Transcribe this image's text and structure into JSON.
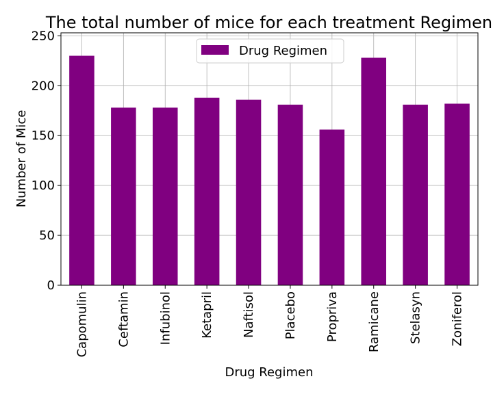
{
  "chart_data": {
    "type": "bar",
    "title": "The total number of mice for each treatment Regimen",
    "xlabel": "Drug Regimen",
    "ylabel": "Number of Mice",
    "categories": [
      "Capomulin",
      "Ceftamin",
      "Infubinol",
      "Ketapril",
      "Naftisol",
      "Placebo",
      "Propriva",
      "Ramicane",
      "Stelasyn",
      "Zoniferol"
    ],
    "series": [
      {
        "name": "Drug Regimen",
        "values": [
          230,
          178,
          178,
          188,
          186,
          181,
          156,
          228,
          181,
          182
        ],
        "color": "#800080"
      }
    ],
    "ylim": [
      0,
      253
    ],
    "yticks": [
      0,
      50,
      100,
      150,
      200,
      250
    ],
    "grid": true,
    "legend": "upper center"
  }
}
